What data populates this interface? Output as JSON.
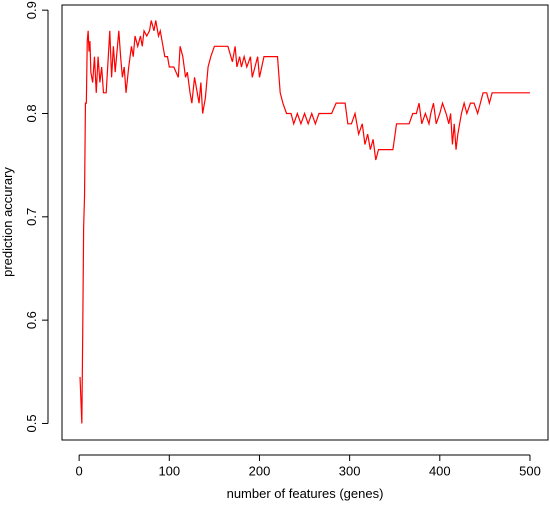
{
  "chart_data": {
    "type": "line",
    "xlabel": "number of features (genes)",
    "ylabel": "prediction accurary",
    "color": "#ff0000",
    "x": [
      1,
      3,
      4,
      5,
      6,
      7,
      8,
      9,
      10,
      11,
      12,
      13,
      15,
      17,
      19,
      21,
      23,
      25,
      27,
      30,
      32,
      34,
      36,
      38,
      40,
      42,
      44,
      46,
      48,
      50,
      52,
      55,
      58,
      60,
      62,
      65,
      68,
      70,
      72,
      75,
      78,
      80,
      83,
      85,
      88,
      90,
      93,
      95,
      98,
      100,
      105,
      110,
      112,
      115,
      118,
      120,
      123,
      125,
      128,
      130,
      133,
      135,
      137,
      140,
      143,
      146,
      150,
      155,
      160,
      165,
      170,
      173,
      175,
      178,
      180,
      183,
      186,
      190,
      192,
      195,
      198,
      200,
      205,
      210,
      215,
      220,
      223,
      226,
      230,
      235,
      238,
      242,
      246,
      250,
      254,
      258,
      262,
      266,
      270,
      275,
      280,
      285,
      290,
      295,
      298,
      302,
      306,
      310,
      314,
      317,
      320,
      323,
      326,
      329,
      332,
      340,
      348,
      352,
      360,
      366,
      370,
      374,
      377,
      380,
      384,
      388,
      390,
      393,
      396,
      400,
      403,
      407,
      410,
      412,
      414,
      416,
      418,
      420,
      422,
      424,
      427,
      430,
      434,
      438,
      442,
      445,
      448,
      452,
      455,
      458,
      470,
      500
    ],
    "values": [
      0.545,
      0.5,
      0.59,
      0.69,
      0.72,
      0.81,
      0.81,
      0.87,
      0.88,
      0.86,
      0.87,
      0.84,
      0.83,
      0.855,
      0.82,
      0.855,
      0.83,
      0.845,
      0.82,
      0.82,
      0.85,
      0.88,
      0.835,
      0.865,
      0.84,
      0.86,
      0.88,
      0.855,
      0.835,
      0.845,
      0.82,
      0.845,
      0.865,
      0.855,
      0.875,
      0.865,
      0.875,
      0.865,
      0.88,
      0.875,
      0.88,
      0.89,
      0.88,
      0.89,
      0.875,
      0.88,
      0.865,
      0.855,
      0.855,
      0.845,
      0.845,
      0.835,
      0.865,
      0.855,
      0.835,
      0.84,
      0.82,
      0.81,
      0.835,
      0.825,
      0.81,
      0.83,
      0.8,
      0.815,
      0.845,
      0.855,
      0.865,
      0.865,
      0.865,
      0.865,
      0.85,
      0.865,
      0.845,
      0.855,
      0.845,
      0.855,
      0.845,
      0.855,
      0.835,
      0.845,
      0.855,
      0.835,
      0.855,
      0.855,
      0.855,
      0.855,
      0.82,
      0.81,
      0.8,
      0.8,
      0.79,
      0.8,
      0.79,
      0.8,
      0.79,
      0.8,
      0.79,
      0.8,
      0.8,
      0.8,
      0.8,
      0.81,
      0.81,
      0.81,
      0.79,
      0.79,
      0.8,
      0.78,
      0.79,
      0.77,
      0.78,
      0.765,
      0.775,
      0.755,
      0.765,
      0.765,
      0.765,
      0.79,
      0.79,
      0.79,
      0.8,
      0.8,
      0.81,
      0.79,
      0.8,
      0.79,
      0.8,
      0.81,
      0.79,
      0.8,
      0.81,
      0.8,
      0.79,
      0.8,
      0.77,
      0.79,
      0.765,
      0.78,
      0.79,
      0.8,
      0.81,
      0.8,
      0.81,
      0.81,
      0.8,
      0.81,
      0.82,
      0.82,
      0.81,
      0.82,
      0.82,
      0.82
    ],
    "xlim": [
      -19,
      520
    ],
    "ylim": [
      0.484,
      0.905
    ],
    "xticks": [
      0,
      100,
      200,
      300,
      400,
      500
    ],
    "yticks": [
      0.5,
      0.6,
      0.7,
      0.8,
      0.9
    ]
  }
}
